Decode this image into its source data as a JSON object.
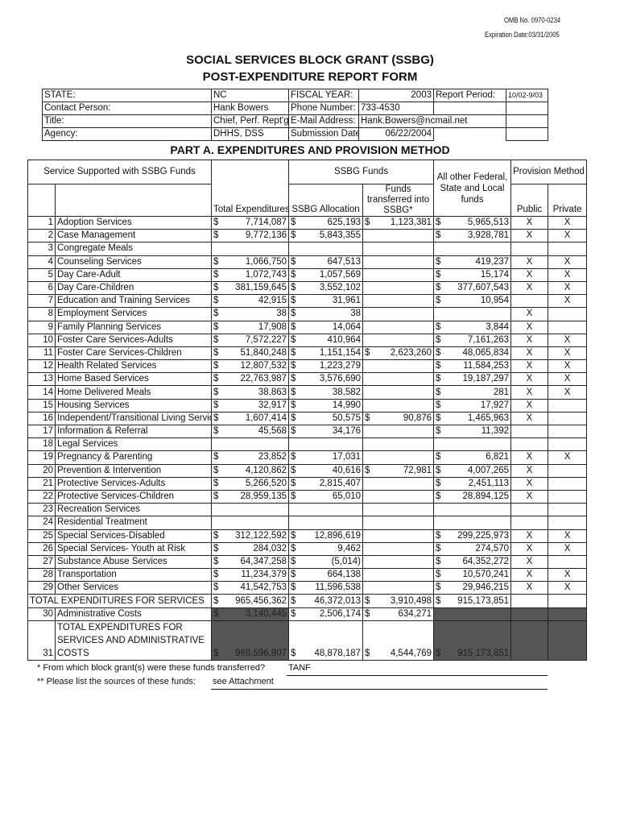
{
  "omb": "OMB No. 0970-0234",
  "expiration": "Expiration Date:03/31/2005",
  "title1": "SOCIAL SERVICES BLOCK GRANT (SSBG)",
  "title2": "POST-EXPENDITURE REPORT FORM",
  "info": {
    "state_label": "STATE:",
    "state": "NC",
    "fy_label": "FISCAL YEAR:",
    "fy": "2003",
    "period_label": "Report Period:",
    "period": "10/02-9/03",
    "contact_label": "Contact Person:",
    "contact": "Hank Bowers",
    "phone_label": "Phone Number:",
    "phone": "733-4530",
    "title_label": "Title:",
    "title": "Chief, Perf. Rept'g.",
    "email_label": "E-Mail Address:",
    "email": "Hank.Bowers@ncmail.net",
    "agency_label": "Agency:",
    "agency": "DHHS, DSS",
    "date_label": "Submission Date:",
    "date": "06/22/2004"
  },
  "part_a": "PART A. EXPENDITURES AND PROVISION METHOD",
  "headers": {
    "service": "Service Supported with SSBG Funds",
    "ssbg_funds": "SSBG Funds",
    "other": "All other Federal, State and Local funds",
    "provision": "Provision Method",
    "total": "Total Expenditures",
    "alloc": "SSBG Allocation",
    "transferred": "Funds transferred into SSBG*",
    "public": "Public",
    "private": "Private"
  },
  "currency": "$",
  "rows": [
    [
      "1",
      "Adoption Services",
      "7,714,087",
      "625,193",
      "1,123,381",
      "5,965,513",
      "X",
      "X"
    ],
    [
      "2",
      "Case Management",
      "9,772,136",
      "5,843,355",
      "",
      "3,928,781",
      "X",
      "X"
    ],
    [
      "3",
      "Congregate Meals",
      "",
      "",
      "",
      "",
      "",
      ""
    ],
    [
      "4",
      "Counseling Services",
      "1,066,750",
      "647,513",
      "",
      "419,237",
      "X",
      "X"
    ],
    [
      "5",
      "Day Care-Adult",
      "1,072,743",
      "1,057,569",
      "",
      "15,174",
      "X",
      "X"
    ],
    [
      "6",
      "Day Care-Children",
      "381,159,645",
      "3,552,102",
      "",
      "377,607,543",
      "X",
      "X"
    ],
    [
      "7",
      "Education and Training Services",
      "42,915",
      "31,961",
      "",
      "10,954",
      "",
      "X"
    ],
    [
      "8",
      "Employment Services",
      "38",
      "38",
      "",
      "",
      "X",
      ""
    ],
    [
      "9",
      "Family Planning Services",
      "17,908",
      "14,064",
      "",
      "3,844",
      "X",
      ""
    ],
    [
      "10",
      "Foster Care Services-Adults",
      "7,572,227",
      "410,964",
      "",
      "7,161,263",
      "X",
      "X"
    ],
    [
      "11",
      "Foster Care Services-Children",
      "51,840,248",
      "1,151,154",
      "2,623,260",
      "48,065,834",
      "X",
      "X"
    ],
    [
      "12",
      "Health Related Services",
      "12,807,532",
      "1,223,279",
      "",
      "11,584,253",
      "X",
      "X"
    ],
    [
      "13",
      "Home Based Services",
      "22,763,987",
      "3,576,690",
      "",
      "19,187,297",
      "X",
      "X"
    ],
    [
      "14",
      "Home Delivered Meals",
      "38,863",
      "38,582",
      "",
      "281",
      "X",
      "X"
    ],
    [
      "15",
      "Housing Services",
      "32,917",
      "14,990",
      "",
      "17,927",
      "X",
      ""
    ],
    [
      "16",
      "Independent/Transitional Living Services",
      "1,607,414",
      "50,575",
      "90,876",
      "1,465,963",
      "X",
      ""
    ],
    [
      "17",
      "Information & Referral",
      "45,568",
      "34,176",
      "",
      "11,392",
      "",
      ""
    ],
    [
      "18",
      "Legal Services",
      "",
      "",
      "",
      "",
      "",
      ""
    ],
    [
      "19",
      "Pregnancy & Parenting",
      "23,852",
      "17,031",
      "",
      "6,821",
      "X",
      "X"
    ],
    [
      "20",
      "Prevention & Intervention",
      "4,120,862",
      "40,616",
      "72,981",
      "4,007,265",
      "X",
      ""
    ],
    [
      "21",
      "Protective Services-Adults",
      "5,266,520",
      "2,815,407",
      "",
      "2,451,113",
      "X",
      ""
    ],
    [
      "22",
      "Protective Services-Children",
      "28,959,135",
      "65,010",
      "",
      "28,894,125",
      "X",
      ""
    ],
    [
      "23",
      "Recreation Services",
      "",
      "",
      "",
      "",
      "",
      ""
    ],
    [
      "24",
      "Residential Treatment",
      "",
      "",
      "",
      "",
      "",
      ""
    ],
    [
      "25",
      "Special Services-Disabled",
      "312,122,592",
      "12,896,619",
      "",
      "299,225,973",
      "X",
      "X"
    ],
    [
      "26",
      "Special Services- Youth at Risk",
      "284,032",
      "9,462",
      "",
      "274,570",
      "X",
      "X"
    ],
    [
      "27",
      "Substance Abuse Services",
      "64,347,258",
      "(5,014)",
      "",
      "64,352,272",
      "X",
      ""
    ],
    [
      "28",
      "Transportation",
      "11,234,379",
      "664,138",
      "",
      "10,570,241",
      "X",
      "X"
    ],
    [
      "29",
      "Other Services",
      "41,542,753",
      "11,596,538",
      "",
      "29,946,215",
      "X",
      "X"
    ]
  ],
  "total_services": {
    "label": "TOTAL EXPENDITURES FOR SERVICES",
    "total": "965,456,362",
    "alloc": "46,372,013",
    "transferred": "3,910,498",
    "other": "915,173,851"
  },
  "admin": {
    "num": "30",
    "label": "Administrative Costs",
    "total": "3,140,445",
    "alloc": "2,506,174",
    "transferred": "634,271"
  },
  "grand": {
    "num": "31",
    "label": "TOTAL EXPENDITURES FOR SERVICES AND ADMINISTRATIVE COSTS",
    "total": "968,596,807",
    "alloc": "48,878,187",
    "transferred": "4,544,769",
    "other": "915,173,851"
  },
  "footnotes": {
    "q1": "* From which block grant(s) were these funds transferred?",
    "a1": "TANF",
    "q2": "** Please list the sources of these funds:",
    "a2": "see Attachment"
  }
}
